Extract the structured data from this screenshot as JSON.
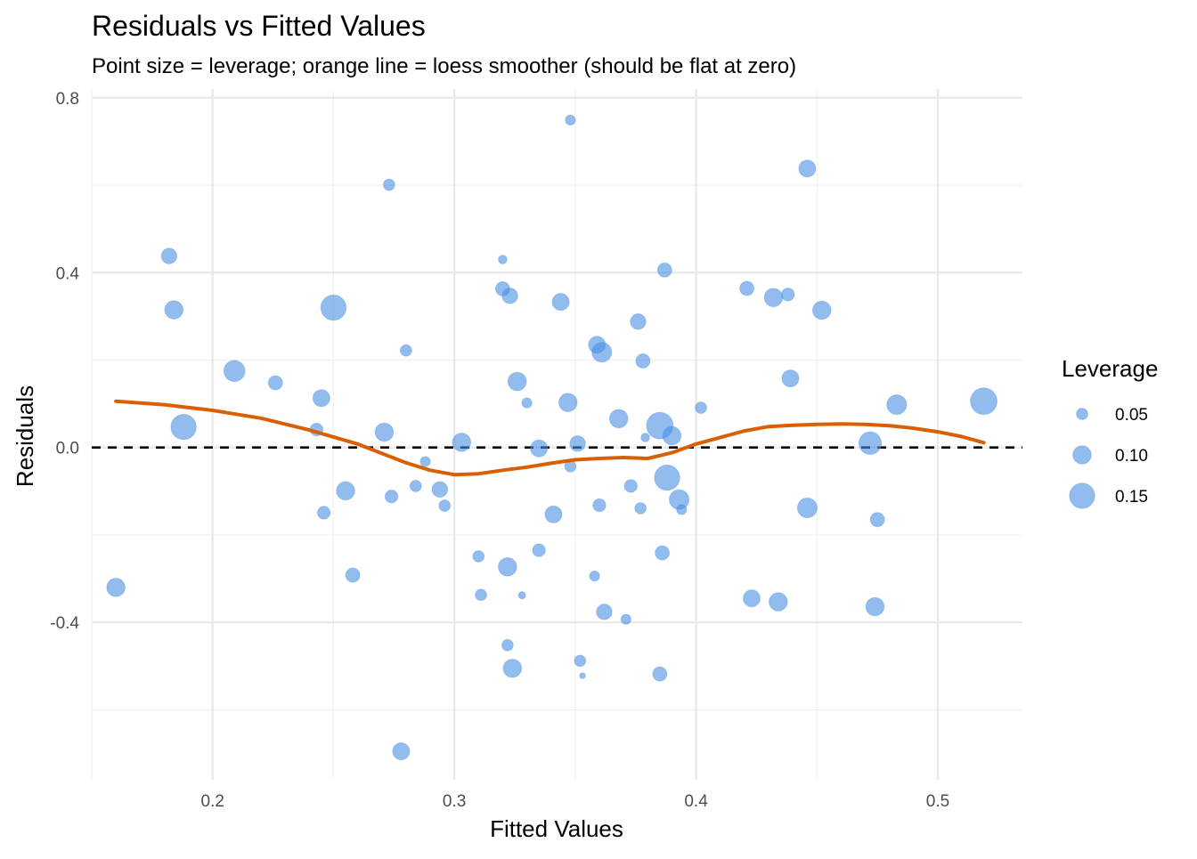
{
  "chart_data": {
    "type": "scatter",
    "title": "Residuals vs Fitted Values",
    "subtitle": "Point size = leverage; orange line = loess smoother (should be flat at zero)",
    "xlabel": "Fitted Values",
    "ylabel": "Residuals",
    "xlim": [
      0.15,
      0.535
    ],
    "ylim": [
      -0.76,
      0.82
    ],
    "x_ticks": [
      0.2,
      0.3,
      0.4,
      0.5
    ],
    "x_tick_labels": [
      "0.2",
      "0.3",
      "0.4",
      "0.5"
    ],
    "y_ticks": [
      -0.4,
      0.0,
      0.4,
      0.8
    ],
    "y_tick_labels": [
      "-0.4",
      "0.0",
      "0.4",
      "0.8"
    ],
    "x_minor_ticks": [
      0.15,
      0.25,
      0.35,
      0.45
    ],
    "y_minor_ticks": [
      -0.6,
      -0.2,
      0.2,
      0.6
    ],
    "grid": true,
    "reference_line": {
      "y": 0.0,
      "style": "dashed",
      "color": "#000000"
    },
    "point_color": "#4a90e2",
    "smoother_color": "#d95f02",
    "legend": {
      "title": "Leverage",
      "position": "right",
      "entries": [
        {
          "label": "0.05",
          "value": 0.05
        },
        {
          "label": "0.10",
          "value": 0.1
        },
        {
          "label": "0.15",
          "value": 0.15
        }
      ]
    },
    "points": [
      {
        "x": 0.16,
        "y": -0.32,
        "leverage": 0.1
      },
      {
        "x": 0.182,
        "y": 0.438,
        "leverage": 0.08
      },
      {
        "x": 0.184,
        "y": 0.315,
        "leverage": 0.1
      },
      {
        "x": 0.188,
        "y": 0.047,
        "leverage": 0.15
      },
      {
        "x": 0.209,
        "y": 0.175,
        "leverage": 0.12
      },
      {
        "x": 0.226,
        "y": 0.148,
        "leverage": 0.07
      },
      {
        "x": 0.243,
        "y": 0.041,
        "leverage": 0.06
      },
      {
        "x": 0.245,
        "y": 0.113,
        "leverage": 0.09
      },
      {
        "x": 0.246,
        "y": -0.149,
        "leverage": 0.06
      },
      {
        "x": 0.25,
        "y": 0.32,
        "leverage": 0.15
      },
      {
        "x": 0.255,
        "y": -0.099,
        "leverage": 0.1
      },
      {
        "x": 0.258,
        "y": -0.292,
        "leverage": 0.07
      },
      {
        "x": 0.271,
        "y": 0.035,
        "leverage": 0.1
      },
      {
        "x": 0.273,
        "y": 0.601,
        "leverage": 0.05
      },
      {
        "x": 0.274,
        "y": -0.112,
        "leverage": 0.06
      },
      {
        "x": 0.278,
        "y": -0.695,
        "leverage": 0.09
      },
      {
        "x": 0.28,
        "y": 0.222,
        "leverage": 0.05
      },
      {
        "x": 0.284,
        "y": -0.088,
        "leverage": 0.05
      },
      {
        "x": 0.288,
        "y": -0.032,
        "leverage": 0.04
      },
      {
        "x": 0.294,
        "y": -0.096,
        "leverage": 0.08
      },
      {
        "x": 0.296,
        "y": -0.133,
        "leverage": 0.05
      },
      {
        "x": 0.303,
        "y": 0.012,
        "leverage": 0.1
      },
      {
        "x": 0.31,
        "y": -0.249,
        "leverage": 0.05
      },
      {
        "x": 0.311,
        "y": -0.337,
        "leverage": 0.05
      },
      {
        "x": 0.32,
        "y": 0.43,
        "leverage": 0.03
      },
      {
        "x": 0.32,
        "y": 0.363,
        "leverage": 0.07
      },
      {
        "x": 0.322,
        "y": -0.273,
        "leverage": 0.1
      },
      {
        "x": 0.322,
        "y": -0.452,
        "leverage": 0.05
      },
      {
        "x": 0.323,
        "y": 0.347,
        "leverage": 0.08
      },
      {
        "x": 0.324,
        "y": -0.505,
        "leverage": 0.1
      },
      {
        "x": 0.326,
        "y": 0.151,
        "leverage": 0.1
      },
      {
        "x": 0.328,
        "y": -0.338,
        "leverage": 0.02
      },
      {
        "x": 0.33,
        "y": 0.102,
        "leverage": 0.04
      },
      {
        "x": 0.335,
        "y": -0.002,
        "leverage": 0.09
      },
      {
        "x": 0.335,
        "y": -0.235,
        "leverage": 0.06
      },
      {
        "x": 0.341,
        "y": -0.153,
        "leverage": 0.09
      },
      {
        "x": 0.344,
        "y": 0.333,
        "leverage": 0.09
      },
      {
        "x": 0.347,
        "y": 0.103,
        "leverage": 0.1
      },
      {
        "x": 0.348,
        "y": -0.043,
        "leverage": 0.05
      },
      {
        "x": 0.348,
        "y": 0.749,
        "leverage": 0.04
      },
      {
        "x": 0.351,
        "y": 0.009,
        "leverage": 0.08
      },
      {
        "x": 0.352,
        "y": -0.488,
        "leverage": 0.05
      },
      {
        "x": 0.353,
        "y": -0.522,
        "leverage": 0.01
      },
      {
        "x": 0.358,
        "y": -0.294,
        "leverage": 0.04
      },
      {
        "x": 0.359,
        "y": 0.235,
        "leverage": 0.09
      },
      {
        "x": 0.36,
        "y": -0.132,
        "leverage": 0.06
      },
      {
        "x": 0.361,
        "y": 0.218,
        "leverage": 0.11
      },
      {
        "x": 0.362,
        "y": -0.376,
        "leverage": 0.08
      },
      {
        "x": 0.368,
        "y": 0.066,
        "leverage": 0.1
      },
      {
        "x": 0.371,
        "y": -0.393,
        "leverage": 0.04
      },
      {
        "x": 0.373,
        "y": -0.088,
        "leverage": 0.06
      },
      {
        "x": 0.376,
        "y": 0.288,
        "leverage": 0.08
      },
      {
        "x": 0.377,
        "y": -0.139,
        "leverage": 0.05
      },
      {
        "x": 0.378,
        "y": 0.198,
        "leverage": 0.07
      },
      {
        "x": 0.379,
        "y": 0.023,
        "leverage": 0.03
      },
      {
        "x": 0.385,
        "y": 0.05,
        "leverage": 0.16
      },
      {
        "x": 0.385,
        "y": -0.518,
        "leverage": 0.07
      },
      {
        "x": 0.386,
        "y": -0.241,
        "leverage": 0.07
      },
      {
        "x": 0.387,
        "y": 0.406,
        "leverage": 0.07
      },
      {
        "x": 0.388,
        "y": -0.069,
        "leverage": 0.15
      },
      {
        "x": 0.39,
        "y": 0.027,
        "leverage": 0.1
      },
      {
        "x": 0.393,
        "y": -0.119,
        "leverage": 0.11
      },
      {
        "x": 0.394,
        "y": -0.142,
        "leverage": 0.04
      },
      {
        "x": 0.402,
        "y": 0.091,
        "leverage": 0.05
      },
      {
        "x": 0.421,
        "y": 0.364,
        "leverage": 0.07
      },
      {
        "x": 0.423,
        "y": -0.345,
        "leverage": 0.09
      },
      {
        "x": 0.432,
        "y": 0.343,
        "leverage": 0.1
      },
      {
        "x": 0.434,
        "y": -0.353,
        "leverage": 0.1
      },
      {
        "x": 0.438,
        "y": 0.35,
        "leverage": 0.06
      },
      {
        "x": 0.439,
        "y": 0.158,
        "leverage": 0.09
      },
      {
        "x": 0.446,
        "y": 0.638,
        "leverage": 0.09
      },
      {
        "x": 0.446,
        "y": -0.138,
        "leverage": 0.11
      },
      {
        "x": 0.452,
        "y": 0.314,
        "leverage": 0.1
      },
      {
        "x": 0.472,
        "y": 0.01,
        "leverage": 0.13
      },
      {
        "x": 0.474,
        "y": -0.364,
        "leverage": 0.1
      },
      {
        "x": 0.475,
        "y": -0.165,
        "leverage": 0.07
      },
      {
        "x": 0.483,
        "y": 0.098,
        "leverage": 0.11
      },
      {
        "x": 0.519,
        "y": 0.106,
        "leverage": 0.16
      }
    ],
    "smoother": {
      "x": [
        0.16,
        0.18,
        0.2,
        0.22,
        0.24,
        0.26,
        0.28,
        0.29,
        0.3,
        0.31,
        0.32,
        0.33,
        0.34,
        0.35,
        0.36,
        0.37,
        0.38,
        0.39,
        0.4,
        0.41,
        0.42,
        0.43,
        0.44,
        0.45,
        0.46,
        0.47,
        0.48,
        0.49,
        0.5,
        0.51,
        0.519
      ],
      "y": [
        0.106,
        0.098,
        0.085,
        0.067,
        0.04,
        0.008,
        -0.035,
        -0.052,
        -0.062,
        -0.06,
        -0.052,
        -0.045,
        -0.036,
        -0.028,
        -0.025,
        -0.023,
        -0.025,
        -0.012,
        0.008,
        0.023,
        0.038,
        0.048,
        0.051,
        0.053,
        0.054,
        0.053,
        0.05,
        0.044,
        0.036,
        0.025,
        0.011
      ]
    }
  }
}
